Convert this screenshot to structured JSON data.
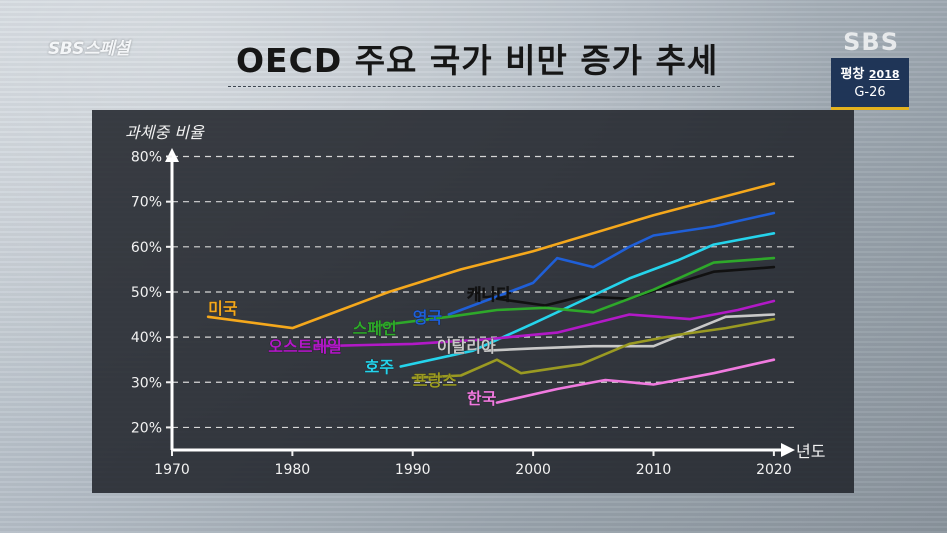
{
  "header": {
    "channel_logo": "SBS스페셜",
    "watermark": "SBS",
    "badge_line1": "평창",
    "badge_year": "2018",
    "badge_line2": "G-26",
    "title": "OECD 주요 국가 비만 증가 추세"
  },
  "chart_data": {
    "type": "line",
    "title": "OECD 주요 국가 비만 증가 추세",
    "ylabel": "과체중 비율",
    "xlabel": "년도",
    "xlim": [
      1970,
      2023
    ],
    "ylim": [
      15,
      81
    ],
    "x_ticks": [
      1970,
      1980,
      1990,
      2000,
      2010,
      2020
    ],
    "y_ticks": [
      20,
      30,
      40,
      50,
      60,
      70,
      80
    ],
    "y_tick_labels": [
      "20%",
      "30%",
      "40%",
      "50%",
      "60%",
      "70%",
      "80%"
    ],
    "grid": "horizontal dashed",
    "series": [
      {
        "name": "미국",
        "color": "#f5a81c",
        "label_year": 1973,
        "label_value": 46.5,
        "points": [
          [
            1973,
            44.5
          ],
          [
            1980,
            42
          ],
          [
            1988,
            50
          ],
          [
            1994,
            55
          ],
          [
            2000,
            59
          ],
          [
            2010,
            67
          ],
          [
            2020,
            74
          ]
        ]
      },
      {
        "name": "영국",
        "color": "#1f5fd8",
        "label_year": 1990,
        "label_value": 44.5,
        "points": [
          [
            1993,
            45
          ],
          [
            1998,
            50
          ],
          [
            2000,
            52
          ],
          [
            2002,
            57.5
          ],
          [
            2005,
            55.5
          ],
          [
            2008,
            60
          ],
          [
            2010,
            62.5
          ],
          [
            2015,
            64.5
          ],
          [
            2020,
            67.5
          ]
        ]
      },
      {
        "name": "캐나다",
        "color": "#111111",
        "label_year": 1994.5,
        "label_value": 49.5,
        "points": [
          [
            1997,
            48.5
          ],
          [
            2001,
            47
          ],
          [
            2004,
            49
          ],
          [
            2008,
            48.5
          ],
          [
            2012,
            52
          ],
          [
            2015,
            54.5
          ],
          [
            2020,
            55.5
          ]
        ]
      },
      {
        "name": "호주",
        "color": "#25d4ec",
        "label_year": 1986,
        "label_value": 33.5,
        "points": [
          [
            1989,
            33.5
          ],
          [
            1995,
            37
          ],
          [
            2000,
            43
          ],
          [
            2004,
            48
          ],
          [
            2008,
            53
          ],
          [
            2012,
            57
          ],
          [
            2015,
            60.5
          ],
          [
            2020,
            63
          ]
        ]
      },
      {
        "name": "스페인",
        "color": "#2ea82a",
        "label_year": 1985,
        "label_value": 42,
        "points": [
          [
            1987,
            42.5
          ],
          [
            1993,
            44.5
          ],
          [
            1997,
            46
          ],
          [
            2001,
            46.5
          ],
          [
            2005,
            45.5
          ],
          [
            2010,
            50.5
          ],
          [
            2015,
            56.5
          ],
          [
            2020,
            57.5
          ]
        ]
      },
      {
        "name": "오스트레일",
        "color": "#b219c7",
        "label_year": 1978,
        "label_value": 38,
        "points": [
          [
            1982,
            38
          ],
          [
            1990,
            38.5
          ],
          [
            1996,
            39.5
          ],
          [
            2002,
            41
          ],
          [
            2008,
            45
          ],
          [
            2013,
            44
          ],
          [
            2017,
            46
          ],
          [
            2020,
            48
          ]
        ]
      },
      {
        "name": "이탈리아",
        "color": "#c8c8c8",
        "label_year": 1992,
        "label_value": 38,
        "points": [
          [
            1996,
            37
          ],
          [
            2000,
            37.5
          ],
          [
            2005,
            38
          ],
          [
            2010,
            38
          ],
          [
            2016,
            44.5
          ],
          [
            2020,
            45
          ]
        ]
      },
      {
        "name": "프랑스",
        "color": "#9a9a22",
        "label_year": 1990,
        "label_value": 30.5,
        "points": [
          [
            1990,
            31
          ],
          [
            1994,
            31.5
          ],
          [
            1997,
            35
          ],
          [
            1999,
            32
          ],
          [
            2004,
            34
          ],
          [
            2008,
            38.5
          ],
          [
            2012,
            40.5
          ],
          [
            2016,
            42
          ],
          [
            2020,
            44
          ]
        ]
      },
      {
        "name": "한국",
        "color": "#f07adf",
        "label_year": 1994.5,
        "label_value": 26.5,
        "points": [
          [
            1997,
            25.5
          ],
          [
            2002,
            28.5
          ],
          [
            2006,
            30.5
          ],
          [
            2010,
            29.5
          ],
          [
            2015,
            32
          ],
          [
            2020,
            35
          ]
        ]
      }
    ]
  }
}
